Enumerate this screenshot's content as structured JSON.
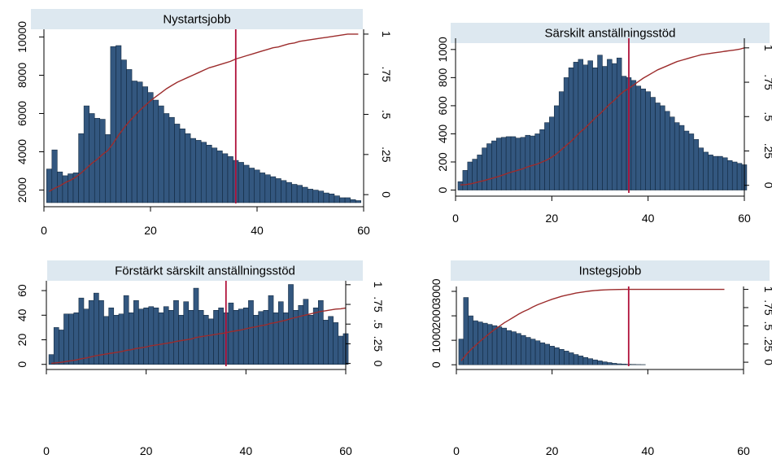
{
  "chart_data": [
    {
      "type": "bar",
      "title": "Nystartsjobb",
      "xlim": [
        0,
        60
      ],
      "xticks": [
        0,
        20,
        40,
        60
      ],
      "ylim_left": [
        1300,
        10400
      ],
      "yticks_left": [
        2000,
        4000,
        6000,
        8000,
        10000
      ],
      "ylim_right": [
        -0.055,
        1.03
      ],
      "yticks_right": [
        0,
        0.25,
        0.5,
        0.75,
        1
      ],
      "yticks_right_labels": [
        "0",
        ".25",
        ".5",
        ".75",
        "1"
      ],
      "vline": 36,
      "x": [
        1,
        2,
        3,
        4,
        5,
        6,
        7,
        8,
        9,
        10,
        11,
        12,
        13,
        14,
        15,
        16,
        17,
        18,
        19,
        20,
        21,
        22,
        23,
        24,
        25,
        26,
        27,
        28,
        29,
        30,
        31,
        32,
        33,
        34,
        35,
        36,
        37,
        38,
        39,
        40,
        41,
        42,
        43,
        44,
        45,
        46,
        47,
        48,
        49,
        50,
        51,
        52,
        53,
        54,
        55,
        56,
        57,
        58,
        59
      ],
      "values": [
        3100,
        4100,
        2950,
        2750,
        2850,
        2900,
        4950,
        6400,
        6000,
        5750,
        5700,
        4900,
        9500,
        9550,
        8800,
        8300,
        7700,
        7650,
        7400,
        7100,
        6700,
        6400,
        6000,
        5800,
        5450,
        5200,
        4950,
        4700,
        4600,
        4500,
        4350,
        4200,
        4050,
        3900,
        3750,
        3550,
        3450,
        3300,
        3150,
        3050,
        2900,
        2800,
        2700,
        2600,
        2500,
        2400,
        2300,
        2250,
        2150,
        2050,
        2000,
        1950,
        1850,
        1800,
        1700,
        1600,
        1600,
        1500,
        1450
      ],
      "cdf": [
        0.02,
        0.04,
        0.055,
        0.075,
        0.09,
        0.11,
        0.135,
        0.165,
        0.195,
        0.22,
        0.25,
        0.275,
        0.32,
        0.37,
        0.415,
        0.455,
        0.49,
        0.525,
        0.555,
        0.585,
        0.61,
        0.635,
        0.66,
        0.68,
        0.7,
        0.715,
        0.73,
        0.745,
        0.76,
        0.775,
        0.79,
        0.8,
        0.81,
        0.82,
        0.83,
        0.845,
        0.855,
        0.865,
        0.875,
        0.885,
        0.895,
        0.905,
        0.915,
        0.92,
        0.93,
        0.94,
        0.945,
        0.955,
        0.96,
        0.965,
        0.97,
        0.975,
        0.98,
        0.985,
        0.99,
        0.995,
        1.0,
        1.0,
        1.0
      ]
    },
    {
      "type": "bar",
      "title": "Särskilt anställningsstöd",
      "xlim": [
        0,
        60
      ],
      "xticks": [
        0,
        20,
        40,
        60
      ],
      "ylim_left": [
        -20,
        1080
      ],
      "yticks_left": [
        0,
        200,
        400,
        600,
        800,
        1000
      ],
      "ylim_right": [
        -0.055,
        1.07
      ],
      "yticks_right": [
        0,
        0.25,
        0.5,
        0.75,
        1
      ],
      "yticks_right_labels": [
        "0",
        ".25",
        ".5",
        ".75",
        "1"
      ],
      "vline": 36,
      "x": [
        1,
        2,
        3,
        4,
        5,
        6,
        7,
        8,
        9,
        10,
        11,
        12,
        13,
        14,
        15,
        16,
        17,
        18,
        19,
        20,
        21,
        22,
        23,
        24,
        25,
        26,
        27,
        28,
        29,
        30,
        31,
        32,
        33,
        34,
        35,
        36,
        37,
        38,
        39,
        40,
        41,
        42,
        43,
        44,
        45,
        46,
        47,
        48,
        49,
        50,
        51,
        52,
        53,
        54,
        55,
        56,
        57,
        58,
        59,
        60
      ],
      "values": [
        60,
        140,
        200,
        220,
        250,
        300,
        330,
        350,
        370,
        375,
        380,
        380,
        370,
        375,
        390,
        385,
        400,
        430,
        480,
        520,
        600,
        700,
        800,
        870,
        910,
        930,
        890,
        920,
        870,
        960,
        880,
        930,
        900,
        940,
        810,
        800,
        780,
        740,
        720,
        700,
        660,
        620,
        600,
        560,
        520,
        480,
        460,
        420,
        400,
        360,
        300,
        270,
        250,
        240,
        240,
        230,
        210,
        200,
        190,
        180
      ],
      "cdf": [
        0.003,
        0.005,
        0.01,
        0.018,
        0.027,
        0.035,
        0.045,
        0.055,
        0.065,
        0.077,
        0.09,
        0.1,
        0.11,
        0.12,
        0.135,
        0.145,
        0.155,
        0.17,
        0.185,
        0.205,
        0.23,
        0.26,
        0.29,
        0.32,
        0.355,
        0.39,
        0.42,
        0.455,
        0.49,
        0.52,
        0.555,
        0.59,
        0.62,
        0.655,
        0.685,
        0.705,
        0.73,
        0.755,
        0.78,
        0.8,
        0.82,
        0.84,
        0.855,
        0.87,
        0.885,
        0.9,
        0.91,
        0.92,
        0.93,
        0.94,
        0.95,
        0.955,
        0.96,
        0.965,
        0.97,
        0.975,
        0.98,
        0.985,
        0.99,
        1.0
      ]
    },
    {
      "type": "bar",
      "title": "Förstärkt särskilt anställningsstöd",
      "xlim": [
        0,
        60
      ],
      "xticks": [
        0,
        20,
        40,
        60
      ],
      "ylim_left": [
        -1.5,
        68
      ],
      "yticks_left": [
        0,
        20,
        40,
        60
      ],
      "ylim_right": [
        -0.035,
        1.05
      ],
      "yticks_right": [
        0,
        0.25,
        0.5,
        0.75,
        1
      ],
      "yticks_right_labels": [
        "0",
        ".25",
        ".5",
        ".75",
        "1"
      ],
      "vline": 36,
      "x": [
        1,
        2,
        3,
        4,
        5,
        6,
        7,
        8,
        9,
        10,
        11,
        12,
        13,
        14,
        15,
        16,
        17,
        18,
        19,
        20,
        21,
        22,
        23,
        24,
        25,
        26,
        27,
        28,
        29,
        30,
        31,
        32,
        33,
        34,
        35,
        36,
        37,
        38,
        39,
        40,
        41,
        42,
        43,
        44,
        45,
        46,
        47,
        48,
        49,
        50,
        51,
        52,
        53,
        54,
        55,
        56,
        57,
        58,
        59,
        60
      ],
      "values": [
        8,
        30,
        28,
        41,
        41,
        42,
        54,
        45,
        52,
        58,
        52,
        39,
        46,
        40,
        41,
        56,
        42,
        52,
        45,
        46,
        47,
        46,
        42,
        47,
        44,
        52,
        40,
        51,
        44,
        62,
        44,
        40,
        37,
        44,
        46,
        42,
        50,
        44,
        45,
        46,
        52,
        40,
        43,
        44,
        56,
        42,
        51,
        42,
        65,
        44,
        48,
        53,
        40,
        46,
        52,
        36,
        39,
        34,
        23,
        25
      ],
      "cdf": [
        0.002,
        0.008,
        0.015,
        0.025,
        0.035,
        0.045,
        0.06,
        0.07,
        0.085,
        0.1,
        0.11,
        0.12,
        0.13,
        0.14,
        0.15,
        0.165,
        0.175,
        0.19,
        0.2,
        0.21,
        0.225,
        0.235,
        0.245,
        0.255,
        0.265,
        0.28,
        0.29,
        0.3,
        0.31,
        0.33,
        0.34,
        0.35,
        0.36,
        0.37,
        0.38,
        0.39,
        0.405,
        0.415,
        0.425,
        0.44,
        0.455,
        0.465,
        0.48,
        0.49,
        0.51,
        0.52,
        0.535,
        0.55,
        0.57,
        0.585,
        0.6,
        0.615,
        0.63,
        0.645,
        0.66,
        0.67,
        0.68,
        0.69,
        0.695,
        0.705
      ]
    },
    {
      "type": "bar",
      "title": "Instegsjobb",
      "xlim": [
        0,
        60
      ],
      "xticks": [
        0,
        20,
        40,
        60
      ],
      "ylim_left": [
        -60,
        3200
      ],
      "yticks_left": [
        0,
        1000,
        2000,
        3000
      ],
      "ylim_right": [
        -0.055,
        1.04
      ],
      "yticks_right": [
        0,
        0.25,
        0.5,
        0.75,
        1
      ],
      "yticks_right_labels": [
        "0",
        ".25",
        ".5",
        ".75",
        "1"
      ],
      "vline": 36,
      "x": [
        1,
        2,
        3,
        4,
        5,
        6,
        7,
        8,
        9,
        10,
        11,
        12,
        13,
        14,
        15,
        16,
        17,
        18,
        19,
        20,
        21,
        22,
        23,
        24,
        25,
        26,
        27,
        28,
        29,
        30,
        31,
        32,
        33,
        34,
        35,
        36,
        37,
        38,
        39
      ],
      "values": [
        1050,
        2750,
        2000,
        1800,
        1750,
        1700,
        1650,
        1600,
        1550,
        1500,
        1400,
        1350,
        1280,
        1200,
        1120,
        1050,
        980,
        900,
        840,
        760,
        700,
        630,
        560,
        490,
        420,
        360,
        300,
        250,
        200,
        160,
        120,
        90,
        60,
        40,
        30,
        20,
        15,
        10,
        8
      ],
      "cdf": [
        0.02,
        0.1,
        0.17,
        0.23,
        0.29,
        0.345,
        0.4,
        0.45,
        0.495,
        0.54,
        0.58,
        0.62,
        0.66,
        0.695,
        0.725,
        0.76,
        0.79,
        0.815,
        0.84,
        0.865,
        0.885,
        0.905,
        0.92,
        0.935,
        0.95,
        0.96,
        0.97,
        0.978,
        0.985,
        0.99,
        0.993,
        0.996,
        0.998,
        0.999,
        1.0,
        1.0,
        1.0,
        1.0,
        1.0
      ],
      "cdf_extend_to": 56
    }
  ]
}
